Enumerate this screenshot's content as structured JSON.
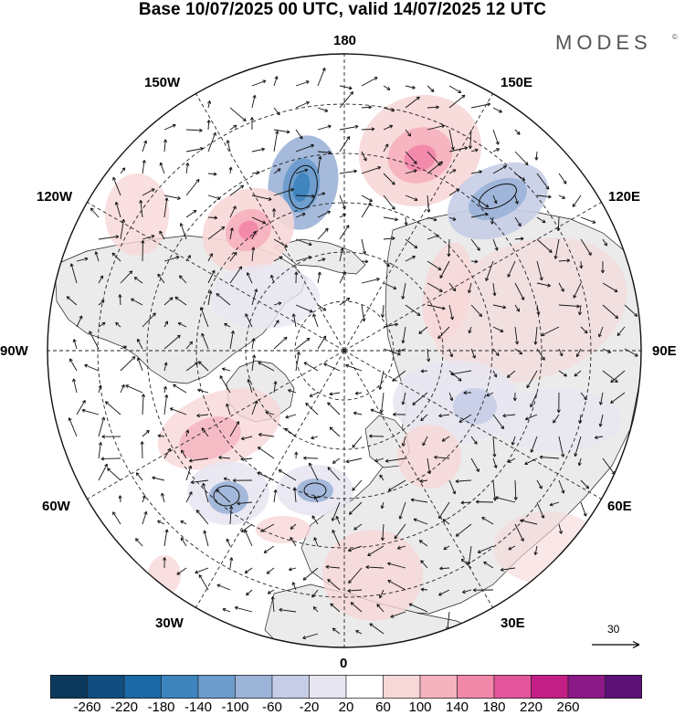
{
  "header": {
    "title": "Base 10/07/2025 00 UTC, valid 14/07/2025 12 UTC",
    "brand": "MODES",
    "brand_mark": "©"
  },
  "map": {
    "projection": "north-polar-stereographic",
    "field": "shaded anomaly with wind vectors",
    "longitude_labels": [
      "180",
      "150E",
      "120E",
      "90E",
      "60E",
      "30E",
      "0",
      "30W",
      "60W",
      "90W",
      "120W",
      "150W"
    ],
    "reference_vector_value": "30",
    "colors": {
      "land_fill": "#ebebeb",
      "ocean_fill": "#ffffff",
      "coastline": "#222222",
      "graticule": "#222222",
      "negative_accent": "#2c5fa0",
      "positive_accent": "#d81b7a"
    }
  },
  "colorbar": {
    "labels": [
      "-260",
      "-220",
      "-180",
      "-140",
      "-100",
      "-60",
      "-20",
      "20",
      "60",
      "100",
      "140",
      "180",
      "220",
      "260"
    ],
    "colors": [
      "#0d3a5c",
      "#114d80",
      "#1b69a6",
      "#3d84bd",
      "#6b9ccc",
      "#9cb3d8",
      "#c6cde6",
      "#e8e6f1",
      "#ffffff",
      "#f7d7d7",
      "#f5b3bf",
      "#f288aa",
      "#e3559a",
      "#c41f86",
      "#8b1a86",
      "#5b1176"
    ]
  }
}
